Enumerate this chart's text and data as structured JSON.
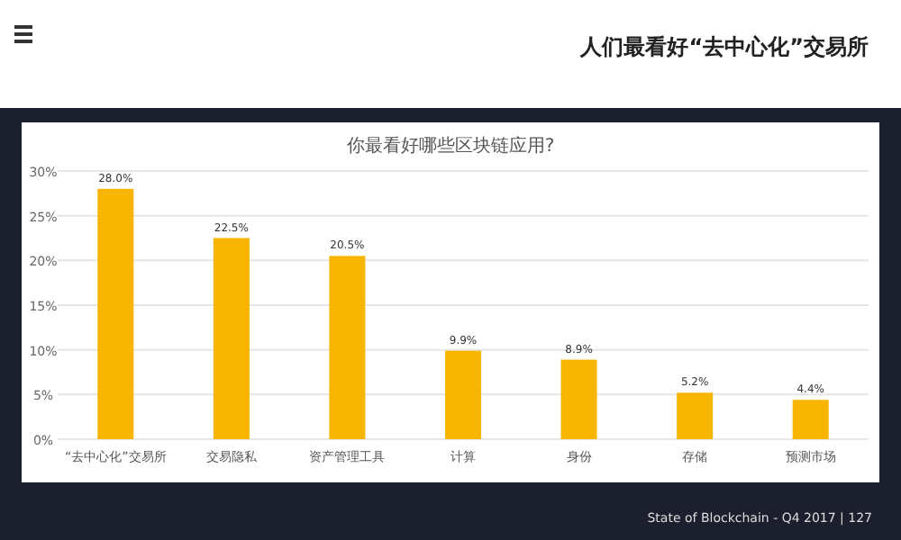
{
  "chart_data": {
    "type": "bar",
    "title": "人们最看好“去中心化”交易所",
    "subtitle": "你最看好哪些区块链应用?",
    "categories": [
      "“去中心化”交易所",
      "交易隐私",
      "资产管理工具",
      "计算",
      "身份",
      "存储",
      "预测市场"
    ],
    "values": [
      28.0,
      22.5,
      20.5,
      9.9,
      8.9,
      5.2,
      4.4
    ],
    "color": "#f7b500",
    "ylim": [
      0,
      30
    ],
    "yticks": [
      {
        "value": 0,
        "label": "0%"
      },
      {
        "value": 5,
        "label": "5%"
      },
      {
        "value": 10,
        "label": "10%"
      },
      {
        "value": 15,
        "label": "15%"
      },
      {
        "value": 20,
        "label": "20%"
      },
      {
        "value": 25,
        "label": "25%"
      },
      {
        "value": 30,
        "label": "30%"
      }
    ],
    "value_labels": [
      "28.0%",
      "22.5%",
      "20.5%",
      "9.9%",
      "8.9%",
      "5.2%",
      "4.4%"
    ],
    "grid": "y",
    "annotations": [
      "State of Blockchain - Q4 2017 | 127"
    ]
  }
}
